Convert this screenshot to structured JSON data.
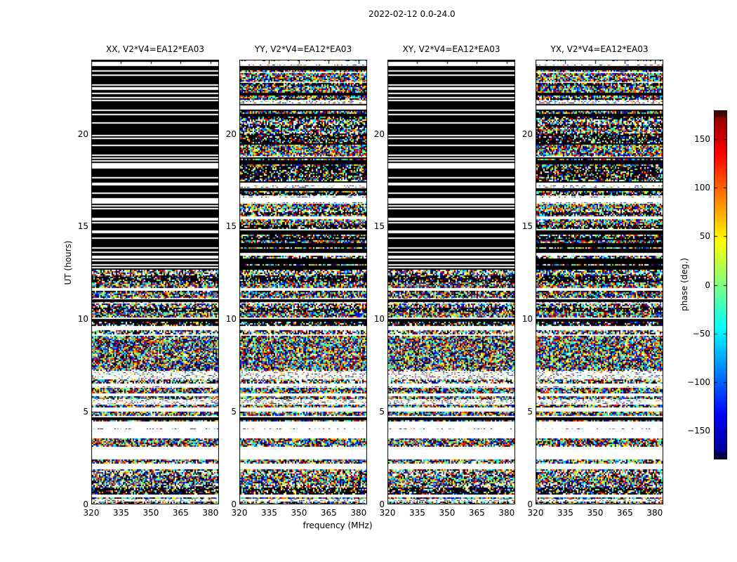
{
  "figure": {
    "suptitle": "2022-02-12 0.0-24.0",
    "xlabel": "frequency (MHz)",
    "ylabel": "UT (hours)"
  },
  "chart_data": {
    "type": "heatmap",
    "title": "2022-02-12 0.0-24.0",
    "xlabel": "frequency (MHz)",
    "ylabel": "UT (hours)",
    "x_range_mhz": [
      320,
      384.3
    ],
    "y_range_hours": [
      0,
      24
    ],
    "xticks": [
      320,
      335,
      350,
      365,
      380
    ],
    "yticks": [
      0,
      5,
      10,
      15,
      20
    ],
    "grid": false,
    "panels": [
      {
        "label": "XX",
        "title": "XX, V2*V4=EA12*EA03",
        "pattern": "flagged-top"
      },
      {
        "label": "YY",
        "title": "YY, V2*V4=EA12*EA03",
        "pattern": "noise-full"
      },
      {
        "label": "XY",
        "title": "XY, V2*V4=EA12*EA03",
        "pattern": "flagged-top"
      },
      {
        "label": "YX",
        "title": "YX, V2*V4=EA12*EA03",
        "pattern": "noise-full"
      }
    ],
    "colorbar": {
      "label": "phase (deg.)",
      "vmin": -180,
      "vmax": 180,
      "ticks": [
        150,
        100,
        50,
        0,
        -50,
        -100,
        -150
      ],
      "colormap": "jet",
      "tick_side": "left"
    },
    "value_description": "random interferometric phases (-180..180 deg) vs frequency and time; black = flagged/zero, white = no data",
    "flagged_top_start_hours": 12.7,
    "flagged_top_white_lines_hours": [
      23.86,
      23.78,
      23.7,
      23.38,
      23.18,
      22.62,
      22.45,
      22.18,
      21.95,
      21.78,
      21.25,
      21.02,
      20.6,
      19.92,
      19.75,
      19.35,
      18.85,
      18.68,
      18.52,
      18.35,
      18.2,
      17.62,
      17.3,
      16.82,
      16.45,
      16.3,
      16.12,
      15.95,
      15.4,
      15.18,
      14.72,
      14.35,
      13.85,
      13.62,
      13.35,
      13.18,
      12.95,
      12.78
    ],
    "shared_bands": [
      {
        "from": 12.0,
        "to": 12.18,
        "state": "dark"
      },
      {
        "from": 10.95,
        "to": 11.1,
        "state": "black"
      },
      {
        "from": 9.5,
        "to": 9.62,
        "state": "white"
      },
      {
        "from": 4.55,
        "to": 4.72,
        "state": "black"
      },
      {
        "from": 3.72,
        "to": 4.02,
        "state": "white"
      },
      {
        "from": 4.02,
        "to": 4.1,
        "state": "sparse"
      },
      {
        "from": 4.1,
        "to": 4.48,
        "state": "white"
      },
      {
        "from": 2.82,
        "to": 3.12,
        "state": "white"
      },
      {
        "from": 1.92,
        "to": 2.18,
        "state": "white"
      },
      {
        "from": 0.5,
        "to": 0.6,
        "state": "dark"
      }
    ],
    "cross_bands": [
      {
        "from": 12.7,
        "to": 12.92,
        "state": "black"
      },
      {
        "from": 13.0,
        "to": 13.28,
        "state": "black"
      },
      {
        "from": 13.45,
        "to": 13.58,
        "state": "white"
      },
      {
        "from": 13.6,
        "to": 13.82,
        "state": "black"
      },
      {
        "from": 13.9,
        "to": 14.12,
        "state": "black"
      },
      {
        "from": 14.55,
        "to": 14.75,
        "state": "black"
      },
      {
        "from": 16.28,
        "to": 16.5,
        "state": "white"
      },
      {
        "from": 17.25,
        "to": 17.38,
        "state": "white"
      },
      {
        "from": 18.35,
        "to": 18.55,
        "state": "black"
      },
      {
        "from": 19.4,
        "to": 19.52,
        "state": "black"
      },
      {
        "from": 20.9,
        "to": 21.05,
        "state": "black"
      },
      {
        "from": 21.3,
        "to": 21.42,
        "state": "white"
      },
      {
        "from": 22.05,
        "to": 22.25,
        "state": "black"
      },
      {
        "from": 23.75,
        "to": 23.85,
        "state": "white"
      }
    ],
    "row_state_weights": {
      "dense": 0.42,
      "mid": 0.2,
      "sparse": 0.1,
      "dark": 0.12,
      "white": 0.08,
      "black": 0.08
    },
    "seed": 42
  }
}
